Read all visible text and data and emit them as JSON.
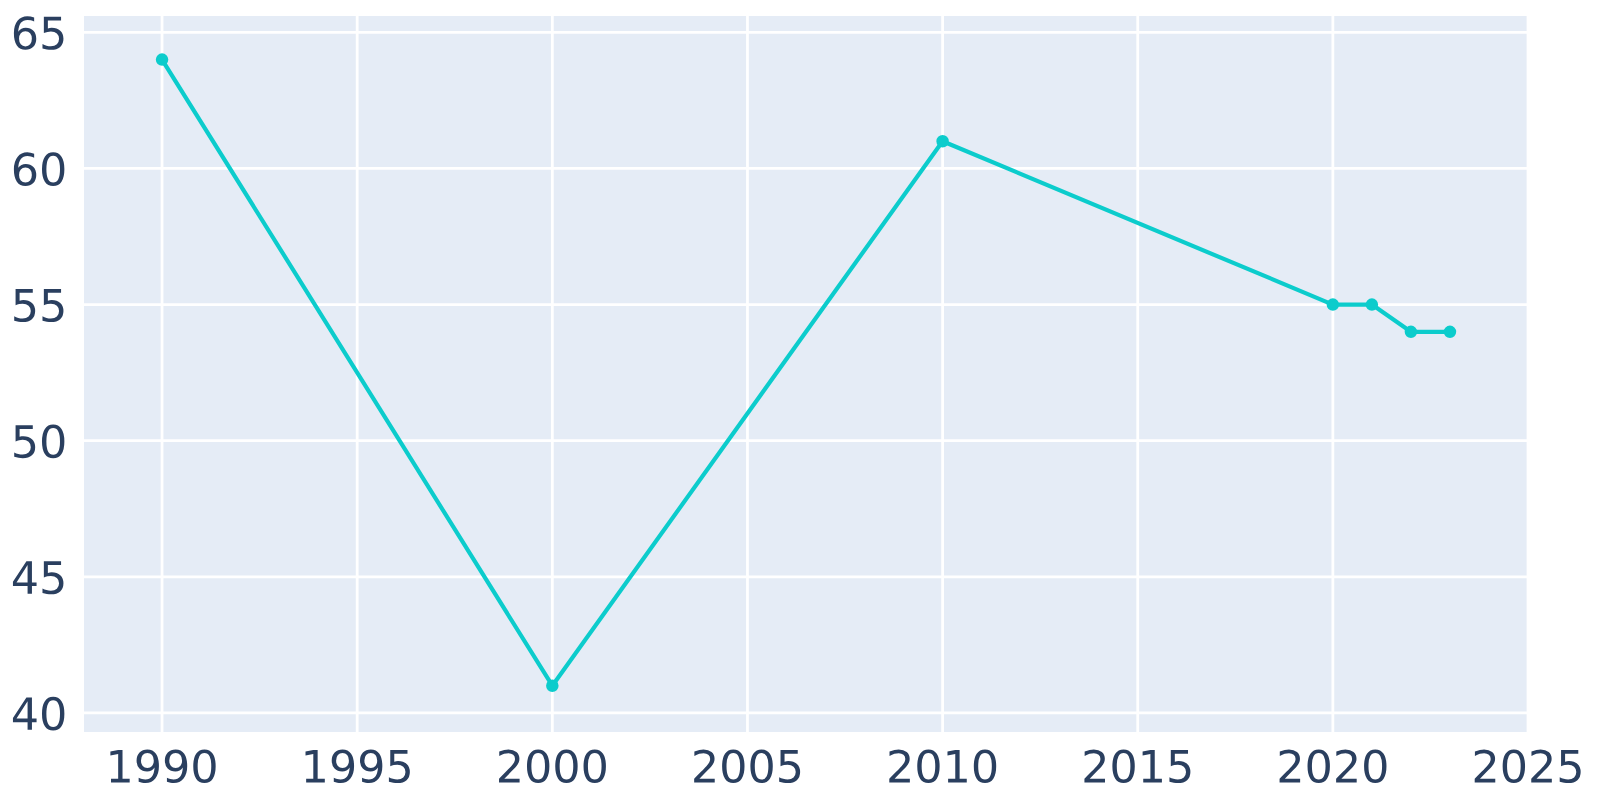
{
  "chart_data": {
    "type": "line",
    "x": [
      1990,
      2000,
      2010,
      2020,
      2021,
      2022,
      2023
    ],
    "series": [
      {
        "color": "#0ccccc",
        "values": [
          64,
          41,
          61,
          55,
          55,
          54,
          54
        ]
      }
    ],
    "xlim": [
      1988,
      2025
    ],
    "ylim": [
      39.3,
      65.6
    ],
    "xticks": [
      1990,
      1995,
      2000,
      2005,
      2010,
      2015,
      2020,
      2025
    ],
    "yticks": [
      40,
      45,
      50,
      55,
      60,
      65
    ],
    "grid": true,
    "marker": "circle",
    "line_style": "solid",
    "legend": false
  }
}
